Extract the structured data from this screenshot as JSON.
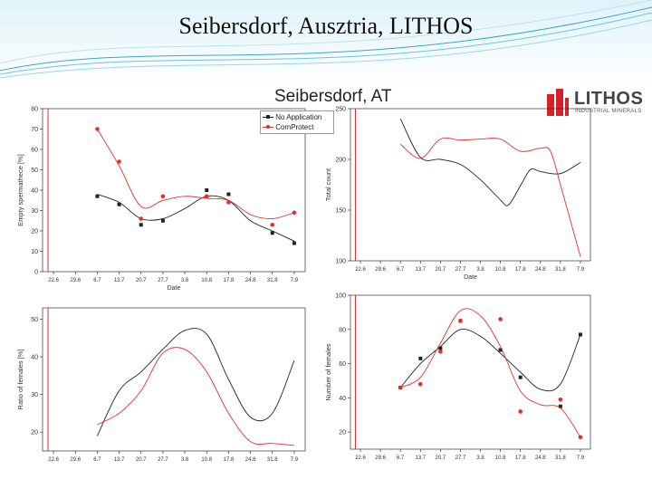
{
  "slide": {
    "title": "Seibersdorf, Ausztria, LITHOS"
  },
  "figure": {
    "title": "Seibersdorf, AT"
  },
  "logo": {
    "name": "LITHOS",
    "subtitle": "INDUSTRIAL MINERALS",
    "colors": [
      "#d72027",
      "#444444"
    ]
  },
  "colors": {
    "no_application": "#222222",
    "comprotect": "#e0302e",
    "date_marker": "#e0302e",
    "header_band": "#dff3fa"
  },
  "legend": {
    "items": [
      "No Application",
      "ComProtect"
    ]
  },
  "date_ticks": [
    "22.6",
    "29.6",
    "6.7",
    "13.7",
    "20.7",
    "27.7",
    "3.8",
    "10.8",
    "17.8",
    "24.8",
    "31.8",
    "7.9"
  ],
  "chart_data": [
    {
      "id": "empty-spermatheca",
      "type": "line",
      "xlabel": "Date",
      "ylabel": "Empty spermathece [%]",
      "ylim": [
        0,
        80
      ],
      "yticks": [
        "0",
        "10",
        "20",
        "30",
        "40",
        "50",
        "60",
        "70",
        "80"
      ],
      "series": [
        {
          "name": "No Application",
          "points": [
            [
              2,
              37
            ],
            [
              3,
              33
            ],
            [
              4,
              23
            ],
            [
              5,
              25
            ],
            [
              7,
              40
            ],
            [
              8,
              38
            ],
            [
              10,
              19
            ],
            [
              11,
              14
            ]
          ],
          "curve": [
            [
              2,
              38
            ],
            [
              3,
              34
            ],
            [
              4,
              26
            ],
            [
              5,
              26
            ],
            [
              6,
              31
            ],
            [
              7,
              37
            ],
            [
              8,
              35
            ],
            [
              9,
              25
            ],
            [
              10,
              20
            ],
            [
              11,
              15
            ]
          ]
        },
        {
          "name": "ComProtect",
          "points": [
            [
              2,
              70
            ],
            [
              3,
              54
            ],
            [
              4,
              26
            ],
            [
              5,
              37
            ],
            [
              7,
              37
            ],
            [
              8,
              34
            ],
            [
              10,
              23
            ],
            [
              11,
              29
            ]
          ],
          "curve": [
            [
              2,
              70
            ],
            [
              3,
              52
            ],
            [
              4,
              32
            ],
            [
              5,
              35
            ],
            [
              6,
              37
            ],
            [
              7,
              36
            ],
            [
              8,
              35
            ],
            [
              9,
              28
            ],
            [
              10,
              26
            ],
            [
              11,
              29
            ]
          ]
        }
      ]
    },
    {
      "id": "total-count",
      "type": "line",
      "xlabel": "Date",
      "ylabel": "Total count",
      "ylim": [
        100,
        250
      ],
      "yticks": [
        "100",
        "150",
        "200",
        "250"
      ],
      "series": [
        {
          "name": "No Application",
          "points": [],
          "curve": [
            [
              2,
              240
            ],
            [
              3,
              202
            ],
            [
              4,
              200
            ],
            [
              5,
              195
            ],
            [
              6,
              180
            ],
            [
              7,
              160
            ],
            [
              7.4,
              155
            ],
            [
              8,
              174
            ],
            [
              8.5,
              190
            ],
            [
              9,
              188
            ],
            [
              10,
              186
            ],
            [
              11,
              197
            ]
          ]
        },
        {
          "name": "ComProtect",
          "points": [],
          "curve": [
            [
              2,
              215
            ],
            [
              3,
              201
            ],
            [
              4,
              220
            ],
            [
              5,
              219
            ],
            [
              6,
              220
            ],
            [
              7,
              220
            ],
            [
              8,
              208
            ],
            [
              9,
              211
            ],
            [
              9.5,
              208
            ],
            [
              10,
              175
            ],
            [
              11,
              104
            ]
          ]
        }
      ]
    },
    {
      "id": "ratio-of-females",
      "type": "line",
      "xlabel": "",
      "ylabel": "Ratio of females [%]",
      "ylim": [
        15,
        53
      ],
      "yticks": [
        "20",
        "30",
        "40",
        "50"
      ],
      "series": [
        {
          "name": "No Application",
          "points": [],
          "curve": [
            [
              2,
              19
            ],
            [
              3,
              31
            ],
            [
              4,
              36
            ],
            [
              5,
              42
            ],
            [
              6,
              47
            ],
            [
              7,
              46
            ],
            [
              8,
              34
            ],
            [
              9,
              24
            ],
            [
              10,
              25
            ],
            [
              11,
              39
            ]
          ]
        },
        {
          "name": "ComProtect",
          "points": [],
          "curve": [
            [
              2,
              22
            ],
            [
              3,
              25
            ],
            [
              4,
              31
            ],
            [
              5,
              41
            ],
            [
              6,
              42
            ],
            [
              7,
              36
            ],
            [
              8,
              25
            ],
            [
              9,
              17.5
            ],
            [
              10,
              17
            ],
            [
              11,
              16.5
            ]
          ]
        }
      ]
    },
    {
      "id": "number-of-females",
      "type": "line",
      "xlabel": "",
      "ylabel": "Number of females",
      "ylim": [
        10,
        100
      ],
      "yticks": [
        "20",
        "40",
        "60",
        "80",
        "100"
      ],
      "series": [
        {
          "name": "No Application",
          "points": [
            [
              2,
              46
            ],
            [
              3,
              63
            ],
            [
              4,
              69
            ],
            [
              5,
              85
            ],
            [
              7,
              68
            ],
            [
              8,
              52
            ],
            [
              10,
              35
            ],
            [
              11,
              77
            ]
          ],
          "curve": [
            [
              2,
              46
            ],
            [
              3,
              60
            ],
            [
              4,
              70
            ],
            [
              5,
              80
            ],
            [
              6,
              76
            ],
            [
              7,
              66
            ],
            [
              8,
              55
            ],
            [
              9,
              45
            ],
            [
              10,
              48
            ],
            [
              11,
              77
            ]
          ]
        },
        {
          "name": "ComProtect",
          "points": [
            [
              2,
              46
            ],
            [
              3,
              48
            ],
            [
              4,
              67
            ],
            [
              5,
              85
            ],
            [
              7,
              86
            ],
            [
              8,
              32
            ],
            [
              10,
              39
            ],
            [
              11,
              17
            ]
          ],
          "curve": [
            [
              2,
              46
            ],
            [
              3,
              52
            ],
            [
              4,
              72
            ],
            [
              5,
              91
            ],
            [
              6,
              88
            ],
            [
              7,
              70
            ],
            [
              8,
              44
            ],
            [
              9,
              36
            ],
            [
              10,
              34
            ],
            [
              11,
              17
            ]
          ]
        }
      ]
    }
  ]
}
